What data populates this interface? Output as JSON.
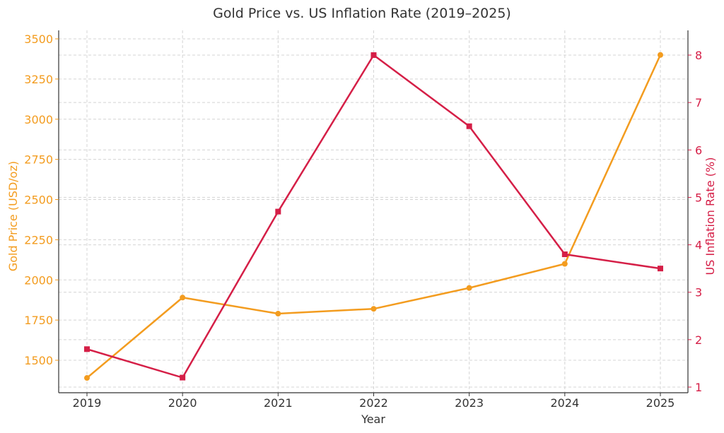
{
  "chart_data": {
    "type": "line",
    "title": "Gold Price vs. US Inflation Rate (2019–2025)",
    "xlabel": "Year",
    "ylabel": "Gold Price (USD/oz)",
    "y2label": "US Inflation Rate (%)",
    "categories": [
      "2019",
      "2020",
      "2021",
      "2022",
      "2023",
      "2024",
      "2025"
    ],
    "ylim": [
      1300,
      3500
    ],
    "y2lim": [
      1,
      8
    ],
    "yticks": [
      1500,
      1750,
      2000,
      2250,
      2500,
      2750,
      3000,
      3250,
      3500
    ],
    "y2ticks": [
      1,
      2,
      3,
      4,
      5,
      6,
      7,
      8
    ],
    "grid": true,
    "legend": "none",
    "series": [
      {
        "axis": "left",
        "color": "#f39c1f",
        "marker": "circle",
        "values": [
          1390,
          1890,
          1790,
          1820,
          1950,
          2100,
          3400
        ]
      },
      {
        "axis": "right",
        "color": "#d51f47",
        "marker": "square",
        "values": [
          1.8,
          1.2,
          4.7,
          8.0,
          6.5,
          3.8,
          3.5
        ]
      }
    ],
    "colors": {
      "left_axis": "#f39c1f",
      "right_axis": "#d51f47",
      "text": "#333333"
    }
  }
}
